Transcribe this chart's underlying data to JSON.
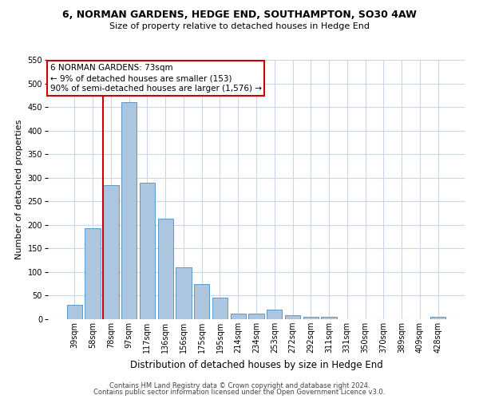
{
  "title1": "6, NORMAN GARDENS, HEDGE END, SOUTHAMPTON, SO30 4AW",
  "title2": "Size of property relative to detached houses in Hedge End",
  "xlabel": "Distribution of detached houses by size in Hedge End",
  "ylabel": "Number of detached properties",
  "categories": [
    "39sqm",
    "58sqm",
    "78sqm",
    "97sqm",
    "117sqm",
    "136sqm",
    "156sqm",
    "175sqm",
    "195sqm",
    "214sqm",
    "234sqm",
    "253sqm",
    "272sqm",
    "292sqm",
    "311sqm",
    "331sqm",
    "350sqm",
    "370sqm",
    "389sqm",
    "409sqm",
    "428sqm"
  ],
  "values": [
    30,
    193,
    285,
    460,
    290,
    213,
    110,
    74,
    46,
    12,
    12,
    20,
    8,
    5,
    5,
    0,
    0,
    0,
    0,
    0,
    5
  ],
  "bar_color": "#adc6e0",
  "bar_edge_color": "#5a9ac8",
  "vline_x_index": 2,
  "vline_color": "#cc0000",
  "annotation_text": "6 NORMAN GARDENS: 73sqm\n← 9% of detached houses are smaller (153)\n90% of semi-detached houses are larger (1,576) →",
  "annotation_box_color": "#cc0000",
  "ylim": [
    0,
    550
  ],
  "yticks": [
    0,
    50,
    100,
    150,
    200,
    250,
    300,
    350,
    400,
    450,
    500,
    550
  ],
  "footer1": "Contains HM Land Registry data © Crown copyright and database right 2024.",
  "footer2": "Contains public sector information licensed under the Open Government Licence v3.0.",
  "bg_color": "#ffffff",
  "grid_color": "#c8d8e8",
  "title1_fontsize": 9,
  "title2_fontsize": 8,
  "ylabel_fontsize": 8,
  "xlabel_fontsize": 8.5,
  "tick_fontsize": 7,
  "ann_fontsize": 7.5,
  "footer_fontsize": 6
}
